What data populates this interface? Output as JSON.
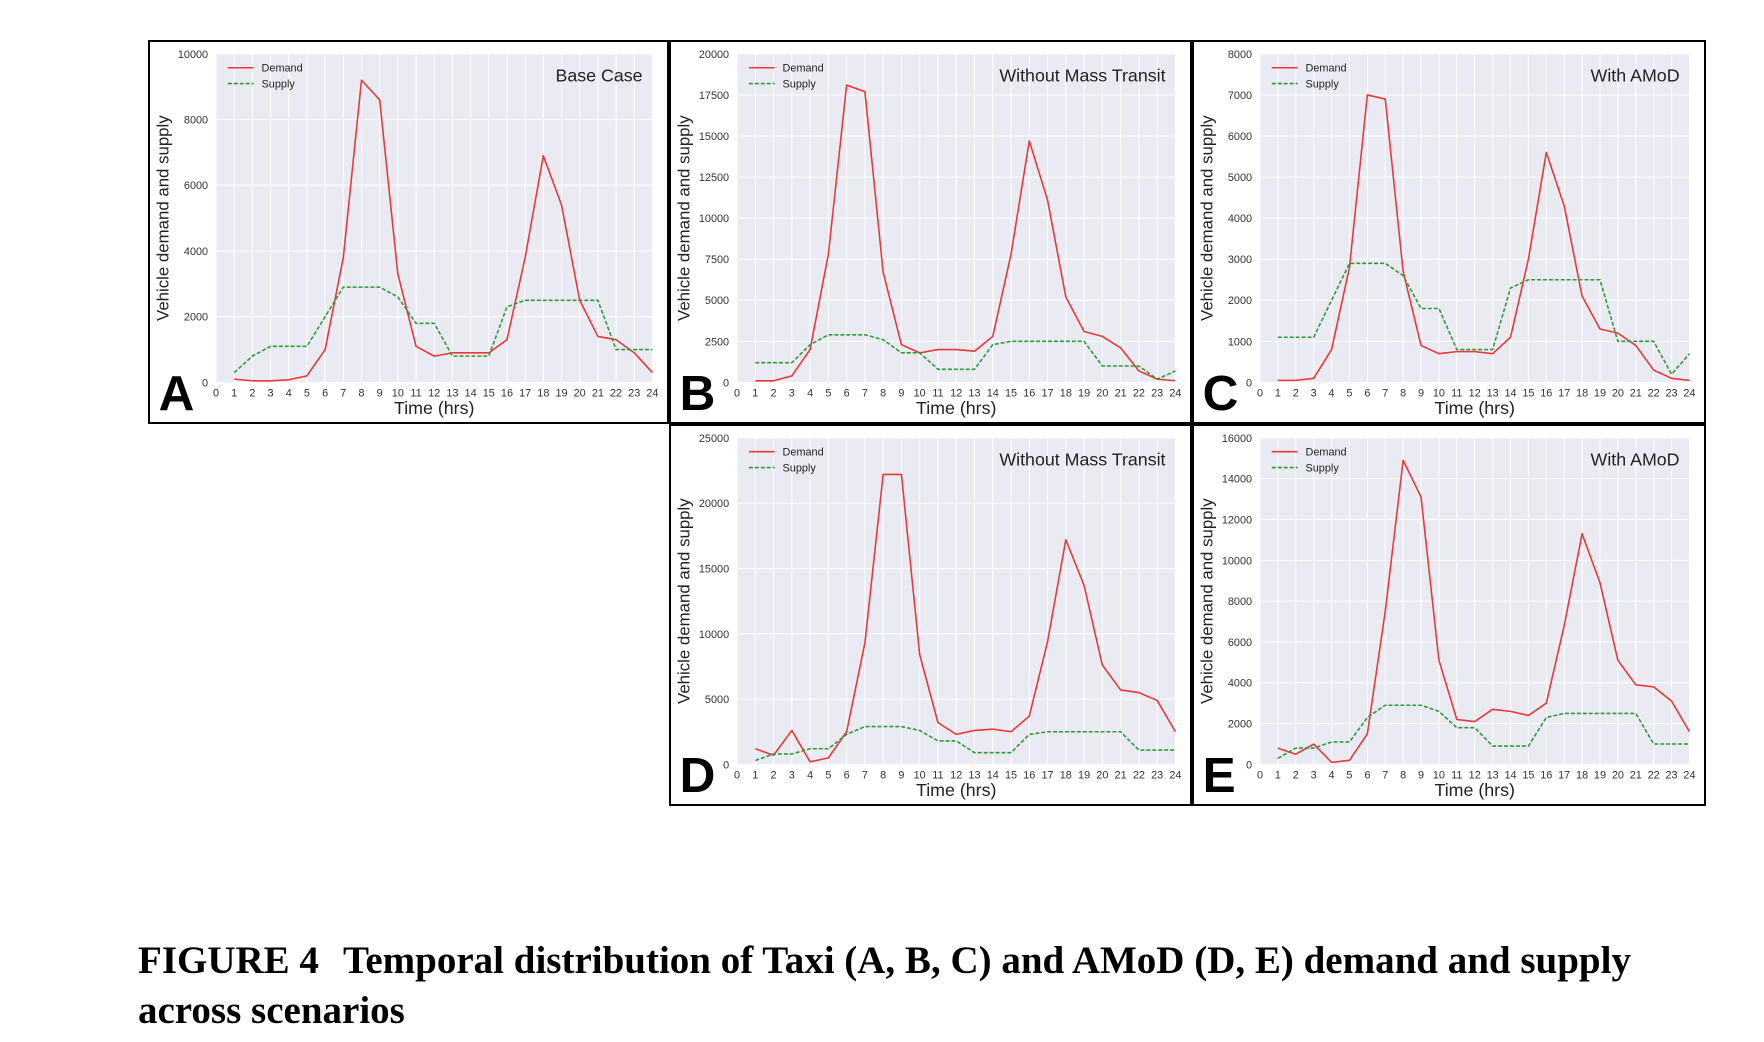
{
  "figure": {
    "caption_label": "FIGURE 4",
    "caption_text": "Temporal distribution of Taxi (A, B, C) and AMoD (D, E) demand and supply across scenarios"
  },
  "colors": {
    "demand": "#e8383b",
    "supply": "#2e9a3a",
    "plot_background": "#eaeaf2",
    "grid": "#ffffff"
  },
  "chart_data": [
    {
      "id": "A",
      "type": "line",
      "panel_letter": "A",
      "title": "Base Case",
      "xlabel": "Time (hrs)",
      "ylabel": "Vehicle demand and supply",
      "xlim": [
        0,
        24
      ],
      "ylim": [
        0,
        10000
      ],
      "yticks": [
        0,
        2000,
        4000,
        6000,
        8000,
        10000
      ],
      "grid": true,
      "legend": "top-left",
      "x": [
        1,
        2,
        3,
        4,
        5,
        6,
        7,
        8,
        9,
        10,
        11,
        12,
        13,
        14,
        15,
        16,
        17,
        18,
        19,
        20,
        21,
        22,
        23,
        24
      ],
      "series": [
        {
          "name": "Demand",
          "style": "solid",
          "values": [
            100,
            50,
            50,
            80,
            200,
            1000,
            3800,
            9200,
            8600,
            3300,
            1100,
            800,
            900,
            900,
            900,
            1300,
            3800,
            6900,
            5400,
            2500,
            1400,
            1300,
            900,
            300
          ]
        },
        {
          "name": "Supply",
          "style": "dashed",
          "values": [
            300,
            800,
            1100,
            1100,
            1100,
            2000,
            2900,
            2900,
            2900,
            2600,
            1800,
            1800,
            800,
            800,
            800,
            2300,
            2500,
            2500,
            2500,
            2500,
            2500,
            1000,
            1000,
            1000
          ]
        }
      ]
    },
    {
      "id": "B",
      "type": "line",
      "panel_letter": "B",
      "title": "Without Mass Transit",
      "xlabel": "Time (hrs)",
      "ylabel": "Vehicle demand and supply",
      "xlim": [
        0,
        24
      ],
      "ylim": [
        0,
        20000
      ],
      "yticks": [
        0,
        2500,
        5000,
        7500,
        10000,
        12500,
        15000,
        17500,
        20000
      ],
      "grid": true,
      "legend": "top-left",
      "x": [
        1,
        2,
        3,
        4,
        5,
        6,
        7,
        8,
        9,
        10,
        11,
        12,
        13,
        14,
        15,
        16,
        17,
        18,
        19,
        20,
        21,
        22,
        23,
        24
      ],
      "series": [
        {
          "name": "Demand",
          "style": "solid",
          "values": [
            100,
            100,
            400,
            2000,
            7800,
            18100,
            17700,
            6700,
            2300,
            1800,
            2000,
            2000,
            1900,
            2800,
            7800,
            14700,
            11100,
            5200,
            3100,
            2800,
            2100,
            700,
            200,
            100
          ]
        },
        {
          "name": "Supply",
          "style": "dashed",
          "values": [
            1200,
            1200,
            1200,
            2300,
            2900,
            2900,
            2900,
            2600,
            1800,
            1800,
            800,
            800,
            800,
            2300,
            2500,
            2500,
            2500,
            2500,
            2500,
            1000,
            1000,
            1000,
            200,
            700
          ]
        }
      ]
    },
    {
      "id": "C",
      "type": "line",
      "panel_letter": "C",
      "title": "With AMoD",
      "xlabel": "Time (hrs)",
      "ylabel": "Vehicle demand and supply",
      "xlim": [
        0,
        24
      ],
      "ylim": [
        0,
        8000
      ],
      "yticks": [
        0,
        1000,
        2000,
        3000,
        4000,
        5000,
        6000,
        7000,
        8000
      ],
      "grid": true,
      "legend": "top-left",
      "x": [
        1,
        2,
        3,
        4,
        5,
        6,
        7,
        8,
        9,
        10,
        11,
        12,
        13,
        14,
        15,
        16,
        17,
        18,
        19,
        20,
        21,
        22,
        23,
        24
      ],
      "series": [
        {
          "name": "Demand",
          "style": "solid",
          "values": [
            50,
            50,
            100,
            800,
            2800,
            7000,
            6900,
            2700,
            900,
            700,
            750,
            750,
            700,
            1100,
            3000,
            5600,
            4300,
            2100,
            1300,
            1200,
            900,
            300,
            100,
            50
          ]
        },
        {
          "name": "Supply",
          "style": "dashed",
          "values": [
            1100,
            1100,
            1100,
            2000,
            2900,
            2900,
            2900,
            2600,
            1800,
            1800,
            800,
            800,
            800,
            2300,
            2500,
            2500,
            2500,
            2500,
            2500,
            1000,
            1000,
            1000,
            200,
            700
          ]
        }
      ]
    },
    {
      "id": "D",
      "type": "line",
      "panel_letter": "D",
      "title": "Without Mass Transit",
      "xlabel": "Time (hrs)",
      "ylabel": "Vehicle demand and supply",
      "xlim": [
        0,
        24
      ],
      "ylim": [
        0,
        25000
      ],
      "yticks": [
        0,
        5000,
        10000,
        15000,
        20000,
        25000
      ],
      "grid": true,
      "legend": "top-left",
      "x": [
        1,
        2,
        3,
        4,
        5,
        6,
        7,
        8,
        9,
        10,
        11,
        12,
        13,
        14,
        15,
        16,
        17,
        18,
        19,
        20,
        21,
        22,
        23,
        24
      ],
      "series": [
        {
          "name": "Demand",
          "style": "solid",
          "values": [
            1200,
            700,
            2600,
            200,
            500,
            2500,
            9300,
            22200,
            22200,
            8400,
            3200,
            2300,
            2600,
            2700,
            2500,
            3700,
            9400,
            17200,
            13700,
            7600,
            5700,
            5500,
            4900,
            2500
          ]
        },
        {
          "name": "Supply",
          "style": "dashed",
          "values": [
            300,
            800,
            800,
            1200,
            1200,
            2300,
            2900,
            2900,
            2900,
            2600,
            1800,
            1800,
            900,
            900,
            900,
            2300,
            2500,
            2500,
            2500,
            2500,
            2500,
            1100,
            1100,
            1100
          ]
        }
      ]
    },
    {
      "id": "E",
      "type": "line",
      "panel_letter": "E",
      "title": "With AMoD",
      "xlabel": "Time (hrs)",
      "ylabel": "Vehicle demand and supply",
      "xlim": [
        0,
        24
      ],
      "ylim": [
        0,
        16000
      ],
      "yticks": [
        0,
        2000,
        4000,
        6000,
        8000,
        10000,
        12000,
        14000,
        16000
      ],
      "grid": true,
      "legend": "top-left",
      "x": [
        1,
        2,
        3,
        4,
        5,
        6,
        7,
        8,
        9,
        10,
        11,
        12,
        13,
        14,
        15,
        16,
        17,
        18,
        19,
        20,
        21,
        22,
        23,
        24
      ],
      "series": [
        {
          "name": "Demand",
          "style": "solid",
          "values": [
            800,
            500,
            1000,
            100,
            200,
            1500,
            7500,
            14900,
            13100,
            5100,
            2200,
            2100,
            2700,
            2600,
            2400,
            3000,
            6800,
            11300,
            8900,
            5100,
            3900,
            3800,
            3100,
            1600
          ]
        },
        {
          "name": "Supply",
          "style": "dashed",
          "values": [
            300,
            800,
            800,
            1100,
            1100,
            2300,
            2900,
            2900,
            2900,
            2600,
            1800,
            1800,
            900,
            900,
            900,
            2300,
            2500,
            2500,
            2500,
            2500,
            2500,
            1000,
            1000,
            1000
          ]
        }
      ]
    }
  ]
}
